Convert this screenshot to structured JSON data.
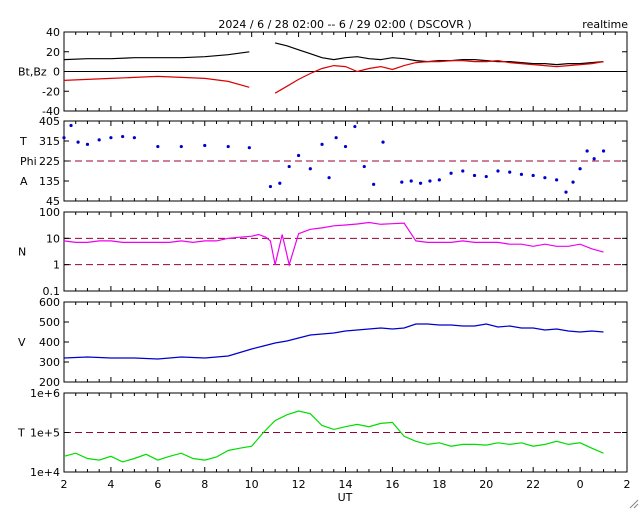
{
  "title": "2024 / 6 / 28  02:00 --  6 / 29  02:00 ( DSCOVR )",
  "tag": "realtime",
  "x_axis": {
    "label": "UT",
    "ticks": [
      "2",
      "4",
      "6",
      "8",
      "10",
      "12",
      "14",
      "16",
      "18",
      "20",
      "22",
      "0",
      "2"
    ]
  },
  "colors": {
    "black": "#000000",
    "red": "#dd0000",
    "blue": "#0000cc",
    "magenta": "#ee00ee",
    "green": "#00dd00",
    "refline": "#990033"
  },
  "chart_data": [
    {
      "type": "line",
      "ylabel": "Bt,Bz",
      "yticks": [
        "40",
        "20",
        "0",
        "-20",
        "-40"
      ],
      "ylim": [
        -40,
        40
      ],
      "reference_lines": [
        0
      ],
      "x": [
        2,
        3,
        4,
        5,
        6,
        7,
        8,
        9,
        9.9,
        10.5,
        11,
        11.5,
        12,
        12.5,
        13,
        13.5,
        14,
        14.5,
        15,
        15.5,
        16,
        16.5,
        17,
        17.5,
        18,
        18.5,
        19,
        19.5,
        20,
        20.5,
        21,
        21.5,
        22,
        22.5,
        23,
        23.5,
        24,
        24.5,
        25
      ],
      "series": [
        {
          "color": "black",
          "values": [
            12,
            13,
            13,
            14,
            14,
            14,
            15,
            17,
            20,
            null,
            29,
            26,
            22,
            18,
            14,
            12,
            14,
            15,
            13,
            12,
            14,
            13,
            11,
            10,
            11,
            11,
            12,
            12,
            11,
            10,
            10,
            9,
            8,
            8,
            7,
            8,
            8,
            9,
            10
          ]
        },
        {
          "color": "red",
          "values": [
            -9,
            -8,
            -7,
            -6,
            -5,
            -6,
            -7,
            -10,
            -16,
            null,
            -22,
            -15,
            -8,
            -2,
            3,
            6,
            5,
            0,
            3,
            5,
            2,
            6,
            9,
            10,
            10,
            11,
            11,
            10,
            10,
            11,
            9,
            8,
            7,
            6,
            5,
            6,
            7,
            8,
            10
          ]
        }
      ]
    },
    {
      "type": "scatter",
      "ylabel_lines": [
        "T",
        "Phi",
        "A"
      ],
      "yticks": [
        "405",
        "315",
        "225",
        "135",
        "45"
      ],
      "ylim": [
        45,
        405
      ],
      "reference_lines": [
        225
      ],
      "x": [
        2,
        2.3,
        2.6,
        3,
        3.5,
        4,
        4.5,
        5,
        5.5,
        6,
        7,
        8,
        9,
        9.9,
        10.3,
        10.8,
        11.2,
        11.6,
        12,
        12.5,
        13,
        13.3,
        13.6,
        14,
        14.4,
        14.8,
        15.2,
        15.6,
        16,
        16.4,
        16.8,
        17.2,
        17.6,
        18,
        18.5,
        19,
        19.5,
        20,
        20.5,
        21,
        21.5,
        22,
        22.5,
        23,
        23.4,
        23.7,
        24,
        24.3,
        24.6,
        25
      ],
      "values": [
        330,
        385,
        310,
        300,
        320,
        330,
        335,
        330,
        null,
        290,
        290,
        295,
        290,
        285,
        null,
        110,
        125,
        200,
        250,
        190,
        300,
        150,
        330,
        290,
        380,
        200,
        120,
        310,
        null,
        130,
        135,
        125,
        135,
        140,
        170,
        180,
        160,
        155,
        180,
        175,
        165,
        160,
        150,
        140,
        85,
        130,
        190,
        270,
        235,
        270
      ]
    },
    {
      "type": "line",
      "ylabel": "N",
      "scale": "log",
      "yticks": [
        "100",
        "10",
        "1",
        "0.1"
      ],
      "ylim": [
        0.1,
        100
      ],
      "reference_lines": [
        1,
        10
      ],
      "x": [
        2,
        2.5,
        3,
        3.5,
        4,
        4.5,
        5,
        5.5,
        6,
        6.5,
        7,
        7.5,
        8,
        8.5,
        9,
        9.5,
        10,
        10.3,
        10.6,
        10.8,
        11,
        11.3,
        11.6,
        12,
        12.5,
        13,
        13.5,
        14,
        14.5,
        15,
        15.5,
        16,
        16.5,
        17,
        17.5,
        18,
        18.5,
        19,
        19.5,
        20,
        20.5,
        21,
        21.5,
        22,
        22.5,
        23,
        23.5,
        24,
        24.5,
        25
      ],
      "values": [
        8,
        7,
        7,
        8,
        8,
        7,
        7,
        7,
        7,
        7,
        8,
        7,
        8,
        8,
        10,
        11,
        12,
        14,
        11,
        8,
        1,
        14,
        1,
        15,
        22,
        25,
        30,
        32,
        35,
        40,
        34,
        36,
        38,
        8,
        7,
        7,
        7,
        8,
        7,
        7,
        7,
        6,
        6,
        5,
        6,
        5,
        5,
        6,
        4,
        3
      ]
    },
    {
      "type": "line",
      "ylabel": "V",
      "yticks": [
        "600",
        "500",
        "400",
        "300",
        "200"
      ],
      "ylim": [
        200,
        600
      ],
      "x": [
        2,
        3,
        4,
        5,
        6,
        7,
        8,
        9,
        10,
        10.5,
        11,
        11.5,
        12,
        12.5,
        13,
        13.5,
        14,
        14.5,
        15,
        15.5,
        16,
        16.5,
        17,
        17.5,
        18,
        18.5,
        19,
        19.5,
        20,
        20.5,
        21,
        21.5,
        22,
        22.5,
        23,
        23.5,
        24,
        24.5,
        25
      ],
      "values": [
        320,
        325,
        320,
        320,
        315,
        325,
        320,
        330,
        365,
        380,
        395,
        405,
        420,
        435,
        440,
        445,
        455,
        460,
        465,
        470,
        465,
        470,
        490,
        490,
        485,
        485,
        480,
        480,
        490,
        475,
        480,
        470,
        470,
        460,
        465,
        455,
        450,
        455,
        450
      ]
    },
    {
      "type": "line",
      "ylabel": "T",
      "scale": "log",
      "yticks": [
        "1e+6",
        "1e+5",
        "1e+4"
      ],
      "ylim": [
        10000,
        1000000
      ],
      "reference_lines": [
        100000
      ],
      "x": [
        2,
        2.5,
        3,
        3.5,
        4,
        4.5,
        5,
        5.5,
        6,
        6.5,
        7,
        7.5,
        8,
        8.5,
        9,
        9.5,
        10,
        10.5,
        11,
        11.5,
        12,
        12.5,
        13,
        13.5,
        14,
        14.5,
        15,
        15.5,
        16,
        16.5,
        17,
        17.5,
        18,
        18.5,
        19,
        19.5,
        20,
        20.5,
        21,
        21.5,
        22,
        22.5,
        23,
        23.5,
        24,
        24.5,
        25
      ],
      "values": [
        25000,
        30000,
        22000,
        20000,
        25000,
        18000,
        22000,
        28000,
        20000,
        25000,
        30000,
        22000,
        20000,
        24000,
        35000,
        40000,
        45000,
        100000,
        200000,
        280000,
        350000,
        300000,
        150000,
        120000,
        140000,
        160000,
        140000,
        170000,
        180000,
        80000,
        60000,
        50000,
        55000,
        45000,
        50000,
        50000,
        48000,
        55000,
        50000,
        55000,
        45000,
        50000,
        60000,
        50000,
        55000,
        40000,
        30000
      ]
    }
  ]
}
